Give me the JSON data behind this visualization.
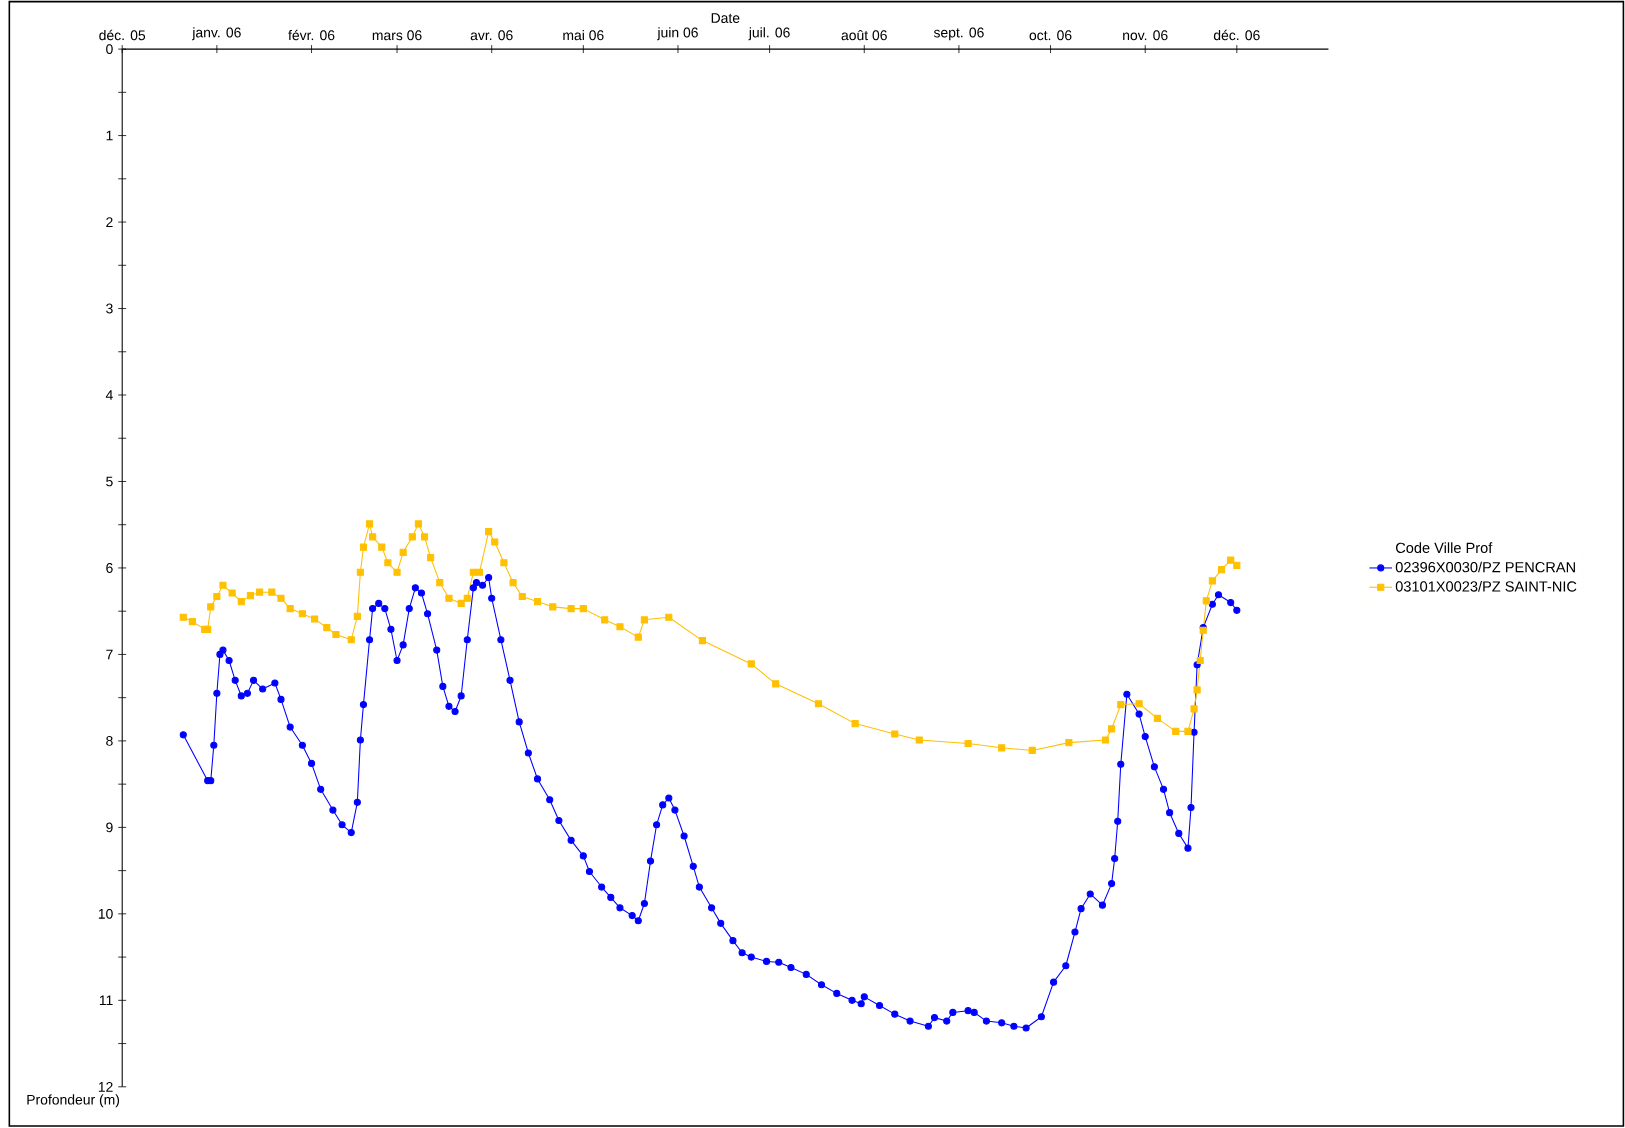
{
  "chart_data": {
    "type": "line",
    "xlabel": "Date",
    "ylabel": "Profondeur (m)",
    "legend_title": "Code Ville Prof",
    "legend": "right",
    "line_style": "solid",
    "grid": false,
    "xlim": [
      "2005-12-01",
      "2006-12-31"
    ],
    "xticks": [
      {
        "value": "2005-12-01",
        "label": "déc. 05"
      },
      {
        "value": "2006-01-01",
        "label": "janv. 06"
      },
      {
        "value": "2006-02-01",
        "label": "févr. 06"
      },
      {
        "value": "2006-03-01",
        "label": "mars 06"
      },
      {
        "value": "2006-04-01",
        "label": "avr. 06"
      },
      {
        "value": "2006-05-01",
        "label": "mai 06"
      },
      {
        "value": "2006-06-01",
        "label": "juin 06"
      },
      {
        "value": "2006-07-01",
        "label": "juil. 06"
      },
      {
        "value": "2006-08-01",
        "label": "août 06"
      },
      {
        "value": "2006-09-01",
        "label": "sept. 06"
      },
      {
        "value": "2006-10-01",
        "label": "oct. 06"
      },
      {
        "value": "2006-11-01",
        "label": "nov. 06"
      },
      {
        "value": "2006-12-01",
        "label": "déc. 06"
      }
    ],
    "ylim": [
      12,
      0
    ],
    "yticks": [
      0,
      {
        "value": 0.5,
        "label": null
      },
      1,
      {
        "value": 1.5,
        "label": null
      },
      2,
      {
        "value": 2.5,
        "label": null
      },
      3,
      {
        "value": 3.5,
        "label": null
      },
      4,
      {
        "value": 4.5,
        "label": null
      },
      5,
      {
        "value": 5.5,
        "label": null
      },
      6,
      {
        "value": 6.5,
        "label": null
      },
      7,
      {
        "value": 7.5,
        "label": null
      },
      8,
      {
        "value": 8.5,
        "label": null
      },
      9,
      {
        "value": 9.5,
        "label": null
      },
      10,
      {
        "value": 10.5,
        "label": null
      },
      11,
      {
        "value": 11.5,
        "label": null
      },
      12
    ],
    "series": [
      {
        "name": "02396X0030/PZ PENCRAN",
        "color": "#0000ff",
        "marker": "circle",
        "x": [
          "2005-12-21",
          "2005-12-29",
          "2005-12-30",
          "2005-12-31",
          "2006-01-01",
          "2006-01-02",
          "2006-01-03",
          "2006-01-05",
          "2006-01-07",
          "2006-01-09",
          "2006-01-11",
          "2006-01-13",
          "2006-01-16",
          "2006-01-20",
          "2006-01-22",
          "2006-01-25",
          "2006-01-29",
          "2006-02-01",
          "2006-02-04",
          "2006-02-08",
          "2006-02-11",
          "2006-02-14",
          "2006-02-16",
          "2006-02-17",
          "2006-02-18",
          "2006-02-20",
          "2006-02-21",
          "2006-02-23",
          "2006-02-25",
          "2006-02-27",
          "2006-03-01",
          "2006-03-03",
          "2006-03-05",
          "2006-03-07",
          "2006-03-09",
          "2006-03-11",
          "2006-03-14",
          "2006-03-16",
          "2006-03-18",
          "2006-03-20",
          "2006-03-22",
          "2006-03-24",
          "2006-03-26",
          "2006-03-27",
          "2006-03-29",
          "2006-03-31",
          "2006-04-01",
          "2006-04-04",
          "2006-04-07",
          "2006-04-10",
          "2006-04-13",
          "2006-04-16",
          "2006-04-20",
          "2006-04-23",
          "2006-04-27",
          "2006-05-01",
          "2006-05-03",
          "2006-05-07",
          "2006-05-10",
          "2006-05-13",
          "2006-05-17",
          "2006-05-19",
          "2006-05-21",
          "2006-05-23",
          "2006-05-25",
          "2006-05-27",
          "2006-05-29",
          "2006-05-31",
          "2006-06-03",
          "2006-06-06",
          "2006-06-08",
          "2006-06-12",
          "2006-06-15",
          "2006-06-19",
          "2006-06-22",
          "2006-06-25",
          "2006-06-30",
          "2006-07-04",
          "2006-07-08",
          "2006-07-13",
          "2006-07-18",
          "2006-07-23",
          "2006-07-28",
          "2006-07-31",
          "2006-08-01",
          "2006-08-06",
          "2006-08-11",
          "2006-08-16",
          "2006-08-22",
          "2006-08-24",
          "2006-08-28",
          "2006-08-30",
          "2006-09-04",
          "2006-09-06",
          "2006-09-10",
          "2006-09-15",
          "2006-09-19",
          "2006-09-23",
          "2006-09-28",
          "2006-10-02",
          "2006-10-06",
          "2006-10-09",
          "2006-10-11",
          "2006-10-14",
          "2006-10-18",
          "2006-10-21",
          "2006-10-22",
          "2006-10-23",
          "2006-10-24",
          "2006-10-26",
          "2006-10-30",
          "2006-11-01",
          "2006-11-04",
          "2006-11-07",
          "2006-11-09",
          "2006-11-12",
          "2006-11-15",
          "2006-11-16",
          "2006-11-17",
          "2006-11-18",
          "2006-11-20",
          "2006-11-23",
          "2006-11-25",
          "2006-11-29",
          "2006-12-01"
        ],
        "values": [
          7.93,
          8.46,
          8.46,
          8.05,
          7.45,
          7.0,
          6.95,
          7.07,
          7.3,
          7.48,
          7.45,
          7.3,
          7.4,
          7.33,
          7.52,
          7.84,
          8.05,
          8.26,
          8.56,
          8.8,
          8.97,
          9.06,
          8.71,
          7.99,
          7.58,
          6.83,
          6.47,
          6.41,
          6.47,
          6.71,
          7.07,
          6.89,
          6.47,
          6.23,
          6.29,
          6.53,
          6.95,
          7.37,
          7.6,
          7.66,
          7.48,
          6.83,
          6.23,
          6.17,
          6.2,
          6.11,
          6.35,
          6.83,
          7.3,
          7.78,
          8.14,
          8.44,
          8.68,
          8.92,
          9.15,
          9.33,
          9.51,
          9.69,
          9.81,
          9.93,
          10.02,
          10.08,
          9.88,
          9.39,
          8.97,
          8.74,
          8.66,
          8.8,
          9.1,
          9.45,
          9.69,
          9.93,
          10.11,
          10.31,
          10.45,
          10.5,
          10.55,
          10.56,
          10.62,
          10.7,
          10.82,
          10.92,
          11.0,
          11.04,
          10.96,
          11.06,
          11.16,
          11.24,
          11.3,
          11.2,
          11.24,
          11.14,
          11.12,
          11.14,
          11.24,
          11.26,
          11.3,
          11.32,
          11.19,
          10.79,
          10.6,
          10.21,
          9.94,
          9.77,
          9.9,
          9.65,
          9.36,
          8.93,
          8.27,
          7.46,
          7.69,
          7.95,
          8.3,
          8.56,
          8.83,
          9.07,
          9.24,
          8.77,
          7.9,
          7.12,
          6.69,
          6.42,
          6.31,
          6.4,
          6.49
        ]
      },
      {
        "name": "03101X0023/PZ SAINT-NIC",
        "color": "#ffc000",
        "marker": "square",
        "x": [
          "2005-12-21",
          "2005-12-24",
          "2005-12-28",
          "2005-12-29",
          "2005-12-30",
          "2006-01-01",
          "2006-01-03",
          "2006-01-06",
          "2006-01-09",
          "2006-01-12",
          "2006-01-15",
          "2006-01-19",
          "2006-01-22",
          "2006-01-25",
          "2006-01-29",
          "2006-02-02",
          "2006-02-06",
          "2006-02-09",
          "2006-02-14",
          "2006-02-16",
          "2006-02-17",
          "2006-02-18",
          "2006-02-20",
          "2006-02-21",
          "2006-02-24",
          "2006-02-26",
          "2006-03-01",
          "2006-03-03",
          "2006-03-06",
          "2006-03-08",
          "2006-03-10",
          "2006-03-12",
          "2006-03-15",
          "2006-03-18",
          "2006-03-22",
          "2006-03-24",
          "2006-03-26",
          "2006-03-28",
          "2006-03-31",
          "2006-04-02",
          "2006-04-05",
          "2006-04-08",
          "2006-04-11",
          "2006-04-16",
          "2006-04-21",
          "2006-04-27",
          "2006-05-01",
          "2006-05-08",
          "2006-05-13",
          "2006-05-19",
          "2006-05-21",
          "2006-05-29",
          "2006-06-09",
          "2006-06-25",
          "2006-07-03",
          "2006-07-17",
          "2006-07-29",
          "2006-08-11",
          "2006-08-19",
          "2006-09-04",
          "2006-09-15",
          "2006-09-25",
          "2006-10-07",
          "2006-10-19",
          "2006-10-21",
          "2006-10-24",
          "2006-10-30",
          "2006-11-05",
          "2006-11-11",
          "2006-11-15",
          "2006-11-17",
          "2006-11-18",
          "2006-11-19",
          "2006-11-20",
          "2006-11-21",
          "2006-11-23",
          "2006-11-26",
          "2006-11-29",
          "2006-12-01"
        ],
        "values": [
          6.57,
          6.62,
          6.71,
          6.71,
          6.45,
          6.33,
          6.2,
          6.29,
          6.39,
          6.32,
          6.28,
          6.28,
          6.35,
          6.47,
          6.53,
          6.59,
          6.69,
          6.77,
          6.83,
          6.56,
          6.05,
          5.76,
          5.49,
          5.64,
          5.76,
          5.94,
          6.05,
          5.82,
          5.64,
          5.49,
          5.64,
          5.88,
          6.17,
          6.35,
          6.41,
          6.35,
          6.05,
          6.05,
          5.58,
          5.7,
          5.94,
          6.17,
          6.33,
          6.39,
          6.45,
          6.47,
          6.47,
          6.6,
          6.68,
          6.8,
          6.6,
          6.57,
          6.84,
          7.11,
          7.34,
          7.57,
          7.8,
          7.92,
          7.99,
          8.03,
          8.08,
          8.11,
          8.02,
          7.99,
          7.86,
          7.58,
          7.57,
          7.74,
          7.89,
          7.89,
          7.63,
          7.41,
          7.07,
          6.72,
          6.38,
          6.15,
          6.02,
          5.91,
          5.97
        ]
      }
    ]
  }
}
